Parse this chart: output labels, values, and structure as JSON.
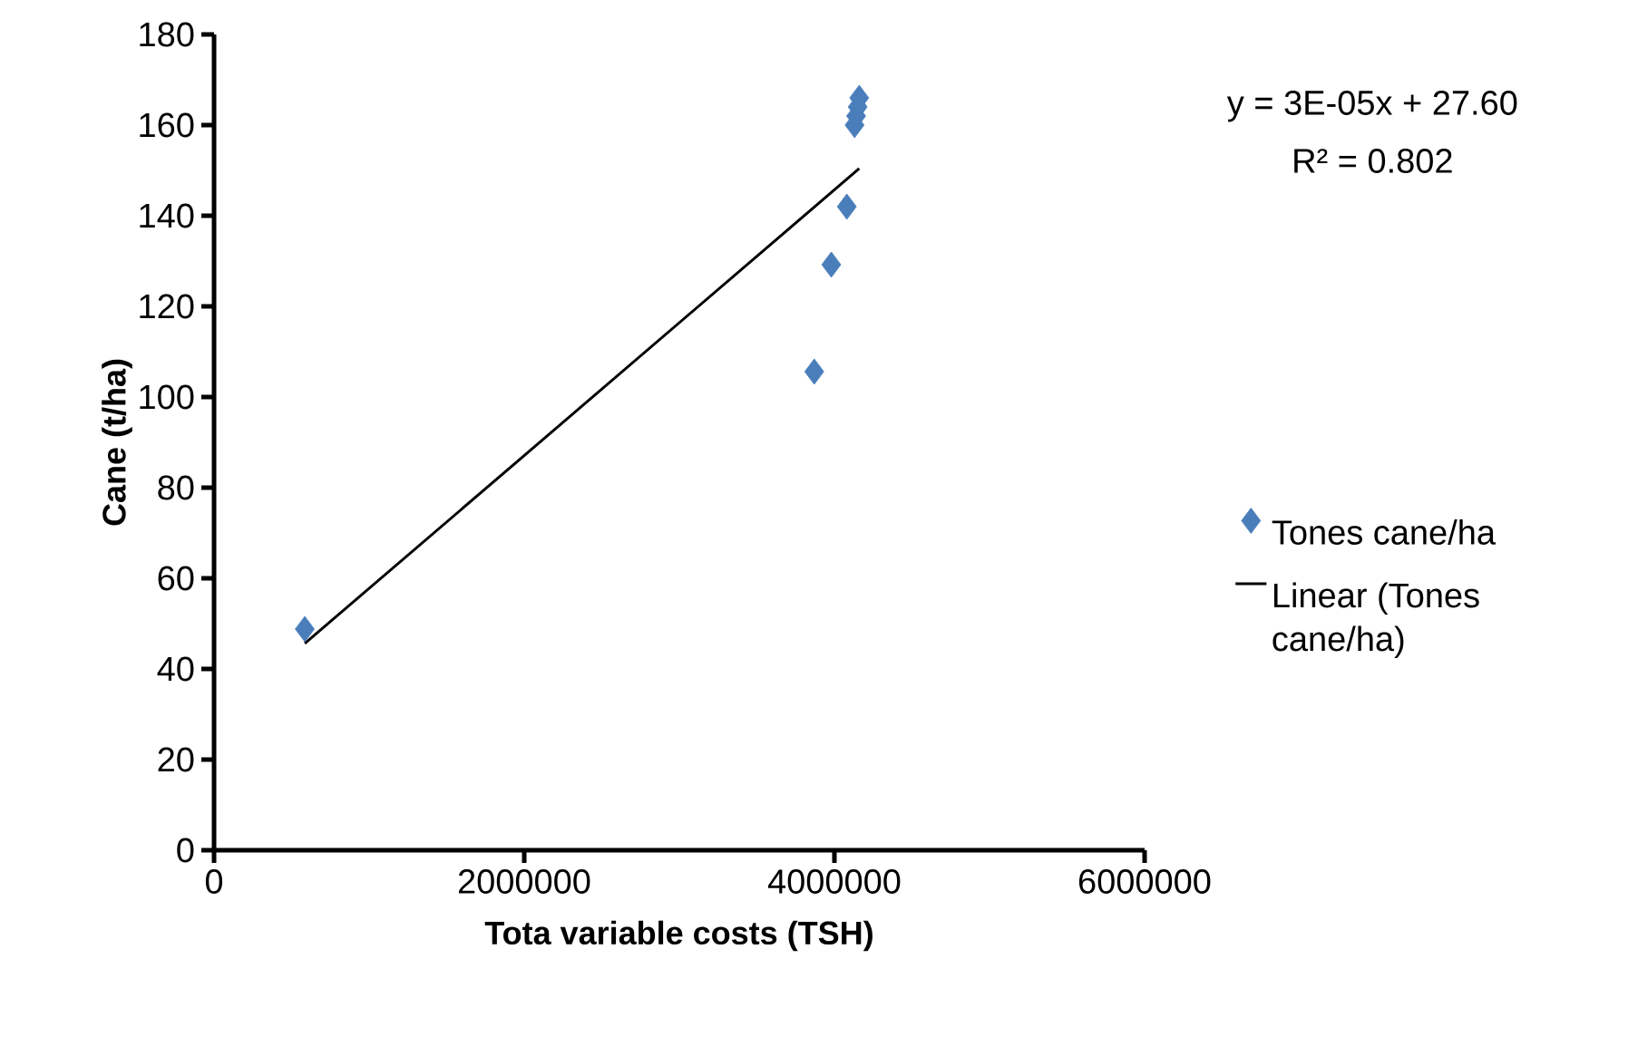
{
  "chart_data": {
    "type": "scatter",
    "xlabel": "Tota variable costs (TSH)",
    "ylabel": "Cane (t/ha)",
    "xlim": [
      0,
      6000000
    ],
    "xticks": [
      0,
      2000000,
      4000000,
      6000000
    ],
    "ylim": [
      0,
      180
    ],
    "yticks": [
      0,
      20,
      40,
      60,
      80,
      100,
      120,
      140,
      160,
      180
    ],
    "series": [
      {
        "name": "Tones cane/ha",
        "color": "#4a7ebb",
        "marker": "diamond",
        "x": [
          585000,
          3870000,
          3980000,
          4080000,
          4130000,
          4140000,
          4150000,
          4160000
        ],
        "values": [
          48.8,
          105.6,
          129.2,
          142,
          160,
          162,
          164,
          166
        ]
      },
      {
        "name": "Linear (Tones cane/ha)",
        "type": "line",
        "color": "#000000",
        "marker": "none",
        "x": [
          585000,
          4160000
        ],
        "values": [
          45.6,
          150.4
        ]
      }
    ],
    "annotations": [
      "y = 3E-05x + 27.60",
      "R² = 0.802"
    ],
    "legend": "right",
    "grid": false
  }
}
